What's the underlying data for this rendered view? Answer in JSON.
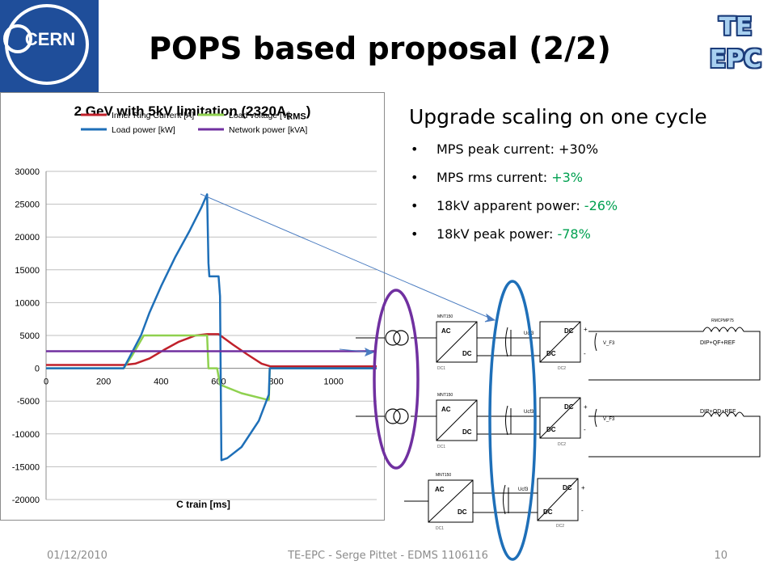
{
  "slide": {
    "title": "POPS based proposal (2/2)",
    "logo_text": "CERN",
    "corner_logo": {
      "line1": "TE",
      "line2": "EPC"
    }
  },
  "chart_data": {
    "type": "line",
    "title": "2 GeV with 5kV limitation (2320A",
    "title_sub": "RMS",
    "title_end": ")",
    "xlabel": "C train [ms]",
    "ylabel": "",
    "xlim": [
      0,
      1150
    ],
    "ylim": [
      -20000,
      30000
    ],
    "x_ticks": [
      0,
      200,
      400,
      600,
      800,
      1000
    ],
    "y_ticks": [
      30000,
      25000,
      20000,
      15000,
      10000,
      5000,
      0,
      -5000,
      -10000,
      -15000,
      -20000
    ],
    "grid": "horizontal",
    "legend_position": "top",
    "series": [
      {
        "name": "Inner Ring Current [A]",
        "color": "#c0202a",
        "points": [
          [
            0,
            500
          ],
          [
            270,
            500
          ],
          [
            310,
            700
          ],
          [
            360,
            1500
          ],
          [
            410,
            2800
          ],
          [
            460,
            4000
          ],
          [
            520,
            5000
          ],
          [
            560,
            5200
          ],
          [
            600,
            5200
          ],
          [
            650,
            3600
          ],
          [
            700,
            2100
          ],
          [
            750,
            700
          ],
          [
            780,
            300
          ],
          [
            1150,
            300
          ]
        ]
      },
      {
        "name": "Load voltage [V]",
        "color": "#8fd14f",
        "points": [
          [
            0,
            0
          ],
          [
            270,
            0
          ],
          [
            300,
            2000
          ],
          [
            340,
            5000
          ],
          [
            545,
            5000
          ],
          [
            560,
            5000
          ],
          [
            565,
            0
          ],
          [
            595,
            0
          ],
          [
            605,
            -2500
          ],
          [
            680,
            -3800
          ],
          [
            770,
            -4800
          ],
          [
            775,
            -4800
          ],
          [
            778,
            0
          ],
          [
            1150,
            0
          ]
        ]
      },
      {
        "name": "Load power [kW]",
        "color": "#1e6fb8",
        "points": [
          [
            0,
            0
          ],
          [
            270,
            0
          ],
          [
            300,
            2500
          ],
          [
            330,
            5000
          ],
          [
            360,
            8500
          ],
          [
            400,
            12500
          ],
          [
            450,
            17000
          ],
          [
            500,
            21000
          ],
          [
            540,
            24500
          ],
          [
            560,
            26500
          ],
          [
            565,
            16000
          ],
          [
            568,
            14000
          ],
          [
            600,
            14000
          ],
          [
            605,
            11000
          ],
          [
            610,
            -14000
          ],
          [
            630,
            -13700
          ],
          [
            680,
            -12000
          ],
          [
            740,
            -8000
          ],
          [
            775,
            -4000
          ],
          [
            778,
            0
          ],
          [
            1150,
            0
          ]
        ]
      },
      {
        "name": "Network power [kVA]",
        "color": "#7030a0",
        "points": [
          [
            0,
            2600
          ],
          [
            1150,
            2600
          ]
        ]
      }
    ]
  },
  "right": {
    "heading": "Upgrade scaling on one cycle",
    "bullets": [
      {
        "text": "MPS peak current: ",
        "value": "+30%"
      },
      {
        "text": "MPS rms current: ",
        "value": "+3%"
      },
      {
        "text": "18kV apparent power: ",
        "value": "-26%"
      },
      {
        "text": "18kV peak power: ",
        "value": "-78%"
      }
    ],
    "positive_color": "#00a050"
  },
  "schematic": {
    "converter_labels": {
      "ac": "AC",
      "dc": "DC",
      "plus": "+",
      "minus": "-"
    },
    "capacitor_label": "Ucf3",
    "voltage_label": "V_F3",
    "load_top": "DIP+QF+REF",
    "load_bottom": "DIP+QD+REF",
    "inductor_label": "RMCPMP75",
    "block_tag": "MNT150",
    "module_tags": [
      "DC1",
      "DC2"
    ]
  },
  "footer": {
    "date": "01/12/2010",
    "center": "TE-EPC - Serge Pittet - EDMS 1106116",
    "page": "10"
  }
}
